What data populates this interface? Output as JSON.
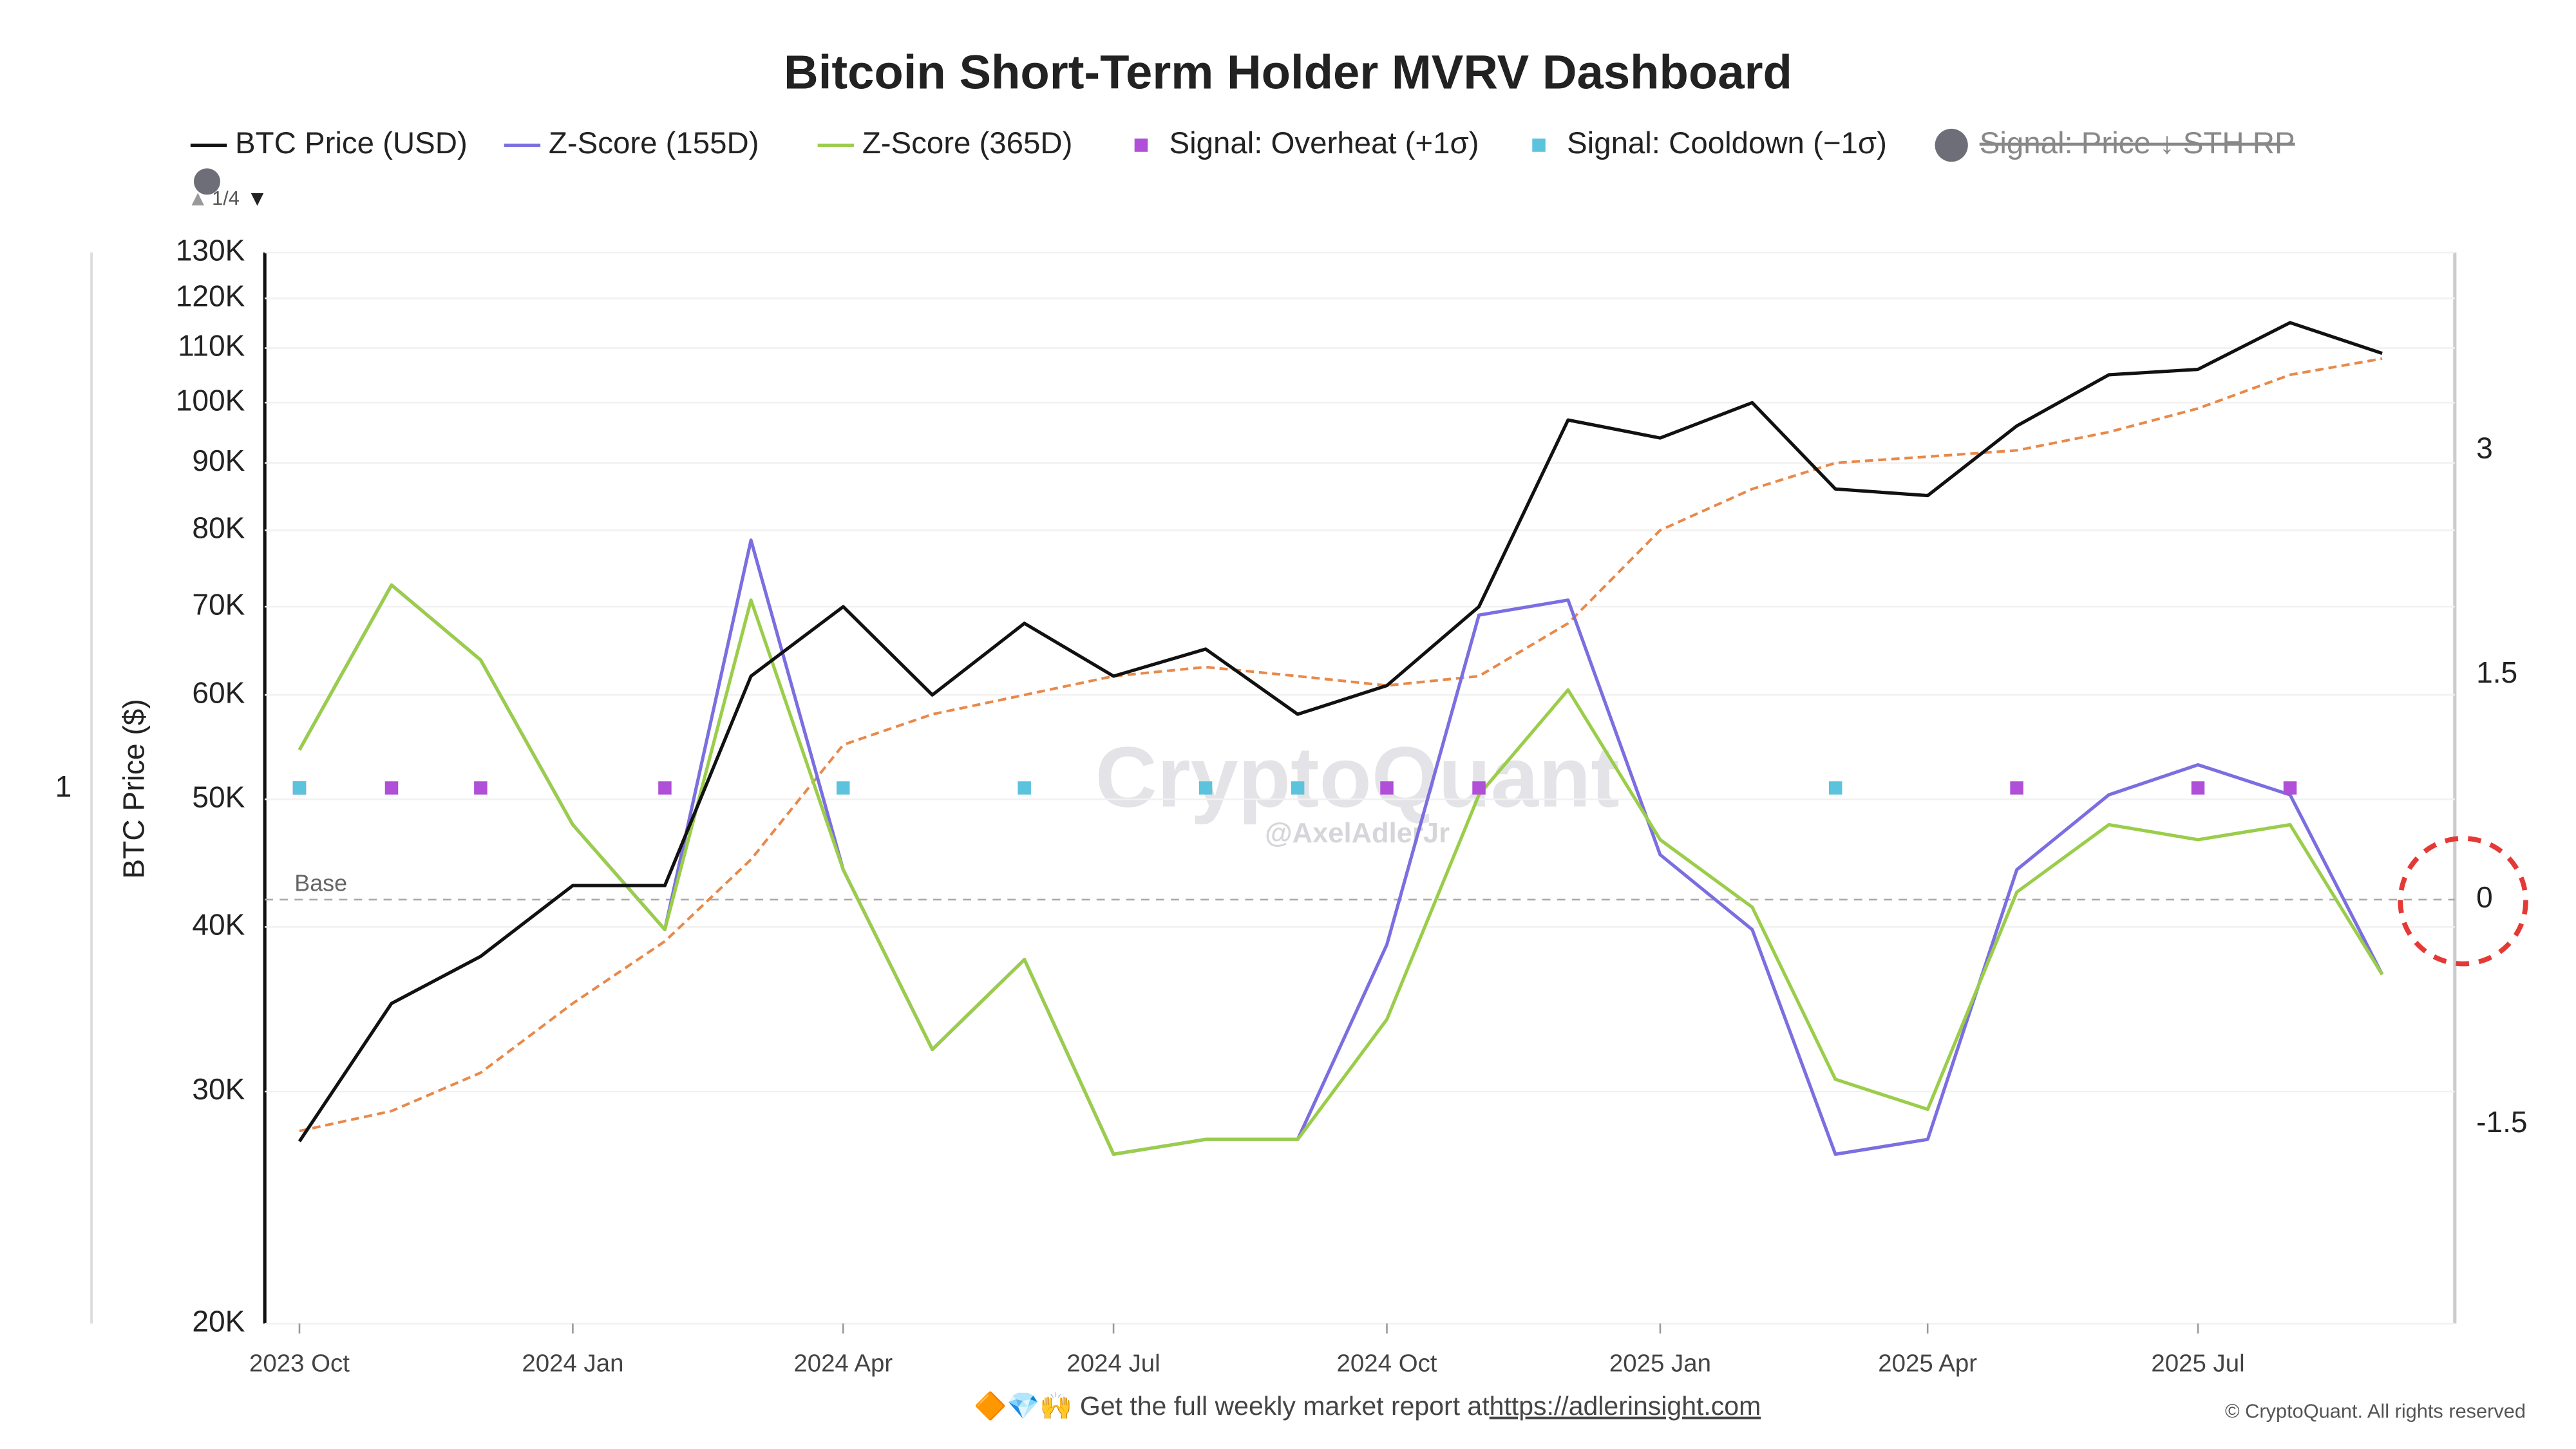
{
  "chart_data": {
    "type": "line",
    "title": "Bitcoin Short-Term Holder MVRV Dashboard",
    "y_label": "BTC Price ($)",
    "left_label": "1",
    "legend_page": "1/4",
    "watermark": "CryptoQuant",
    "watermark_author": "@AxelAdlerJr",
    "footer": "🔶💎🙌 Get the full weekly market report at",
    "footer_link": "https://adlerinsight.com",
    "copyright": "© CryptoQuant. All rights reserved",
    "xlim": [
      "2023-10",
      "2025-09"
    ],
    "xticks": [
      {
        "value": "2023-10",
        "label": "2023 Oct"
      },
      {
        "value": "2024-01",
        "label": "2024 Jan"
      },
      {
        "value": "2024-04",
        "label": "2024 Apr"
      },
      {
        "value": "2024-07",
        "label": "2024 Jul"
      },
      {
        "value": "2024-10",
        "label": "2024 Oct"
      },
      {
        "value": "2025-01",
        "label": "2025 Jan"
      },
      {
        "value": "2025-04",
        "label": "2025 Apr"
      },
      {
        "value": "2025-07",
        "label": "2025 Jul"
      }
    ],
    "ylim": [
      20000,
      130000
    ],
    "yscale": "log",
    "yticks": [
      {
        "value": 20000,
        "label": "20K"
      },
      {
        "value": 30000,
        "label": "30K"
      },
      {
        "value": 40000,
        "label": "40K"
      },
      {
        "value": 50000,
        "label": "50K"
      },
      {
        "value": 60000,
        "label": "60K"
      },
      {
        "value": 70000,
        "label": "70K"
      },
      {
        "value": 80000,
        "label": "80K"
      },
      {
        "value": 90000,
        "label": "90K"
      },
      {
        "value": 100000,
        "label": "100K"
      },
      {
        "value": 110000,
        "label": "110K"
      },
      {
        "value": 120000,
        "label": "120K"
      },
      {
        "value": 130000,
        "label": "130K"
      }
    ],
    "y2lim": [
      -2.83,
      4.32
    ],
    "y2ticks": [
      -1.5,
      0,
      1.5,
      3
    ],
    "grid": true,
    "baseline": {
      "value": 0,
      "label": "Base",
      "axis": "y2"
    },
    "series": [
      {
        "name": "BTC Price (USD)",
        "kind": "line",
        "color": "#111111",
        "x": [
          "2023-10",
          "2023-11",
          "2023-12",
          "2024-01",
          "2024-02",
          "2024-03",
          "2024-04",
          "2024-05",
          "2024-06",
          "2024-07",
          "2024-08",
          "2024-09",
          "2024-10",
          "2024-11",
          "2024-12",
          "2025-01",
          "2025-02",
          "2025-03",
          "2025-04",
          "2025-05",
          "2025-06",
          "2025-07",
          "2025-08",
          "2025-09"
        ],
        "values": [
          27500,
          35000,
          38000,
          43000,
          43000,
          62000,
          70000,
          60000,
          68000,
          62000,
          65000,
          58000,
          61000,
          70000,
          97000,
          94000,
          100000,
          86000,
          85000,
          96000,
          105000,
          106000,
          115000,
          109000
        ]
      },
      {
        "name": "Z-Score (155D)",
        "kind": "line",
        "color": "#7b6ee0",
        "axis": "y2",
        "x": [
          "2023-10",
          "2023-11",
          "2023-12",
          "2024-01",
          "2024-02",
          "2024-03",
          "2024-04",
          "2024-05",
          "2024-06",
          "2024-07",
          "2024-08",
          "2024-09",
          "2024-10",
          "2024-11",
          "2024-12",
          "2025-01",
          "2025-02",
          "2025-03",
          "2025-04",
          "2025-05",
          "2025-06",
          "2025-07",
          "2025-08",
          "2025-09"
        ],
        "values": [
          1.0,
          2.1,
          1.6,
          0.5,
          -0.2,
          2.4,
          0.2,
          -1.0,
          -0.4,
          -1.7,
          -1.6,
          -1.6,
          -0.3,
          1.9,
          2.0,
          0.3,
          -0.2,
          -1.7,
          -1.6,
          0.2,
          0.7,
          0.9,
          0.7,
          -0.5
        ]
      },
      {
        "name": "Z-Score (365D)",
        "kind": "line",
        "color": "#9acd4a",
        "axis": "y2",
        "x": [
          "2023-10",
          "2023-11",
          "2023-12",
          "2024-01",
          "2024-02",
          "2024-03",
          "2024-04",
          "2024-05",
          "2024-06",
          "2024-07",
          "2024-08",
          "2024-09",
          "2024-10",
          "2024-11",
          "2024-12",
          "2025-01",
          "2025-02",
          "2025-03",
          "2025-04",
          "2025-05",
          "2025-06",
          "2025-07",
          "2025-08",
          "2025-09"
        ],
        "values": [
          1.0,
          2.1,
          1.6,
          0.5,
          -0.2,
          2.0,
          0.2,
          -1.0,
          -0.4,
          -1.7,
          -1.6,
          -1.6,
          -0.8,
          0.7,
          1.4,
          0.4,
          -0.05,
          -1.2,
          -1.4,
          0.05,
          0.5,
          0.4,
          0.5,
          -0.5
        ]
      },
      {
        "kind": "line",
        "color": "#e8894a",
        "dashed": true,
        "x": [
          "2023-10",
          "2023-11",
          "2023-12",
          "2024-01",
          "2024-02",
          "2024-03",
          "2024-04",
          "2024-05",
          "2024-06",
          "2024-07",
          "2024-08",
          "2024-09",
          "2024-10",
          "2024-11",
          "2024-12",
          "2025-01",
          "2025-02",
          "2025-03",
          "2025-04",
          "2025-05",
          "2025-06",
          "2025-07",
          "2025-08",
          "2025-09"
        ],
        "values": [
          28000,
          29000,
          31000,
          35000,
          39000,
          45000,
          55000,
          58000,
          60000,
          62000,
          63000,
          62000,
          61000,
          62000,
          68000,
          80000,
          86000,
          90000,
          91000,
          92000,
          95000,
          99000,
          105000,
          108000
        ]
      },
      {
        "name": "Signal: Overheat (+1σ)",
        "kind": "marker",
        "color": "#b04fd8",
        "x": [
          "2023-10",
          "2023-11",
          "2023-12",
          "2024-02",
          "2024-10",
          "2024-11",
          "2025-05",
          "2025-07",
          "2025-08"
        ],
        "values": [
          51000,
          51000,
          51000,
          51000,
          51000,
          51000,
          51000,
          51000,
          51000
        ]
      },
      {
        "name": "Signal: Cooldown (−1σ)",
        "kind": "marker",
        "color": "#5bc4dc",
        "x": [
          "2023-10",
          "2024-04",
          "2024-06",
          "2024-08",
          "2024-09",
          "2025-03"
        ],
        "values": [
          51000,
          51000,
          51000,
          51000,
          51000,
          51000
        ]
      },
      {
        "name": "Signal: Price ↓ STH RP",
        "kind": "circle",
        "color": "#6e6e78",
        "hidden": true,
        "x": [],
        "values": []
      }
    ]
  }
}
